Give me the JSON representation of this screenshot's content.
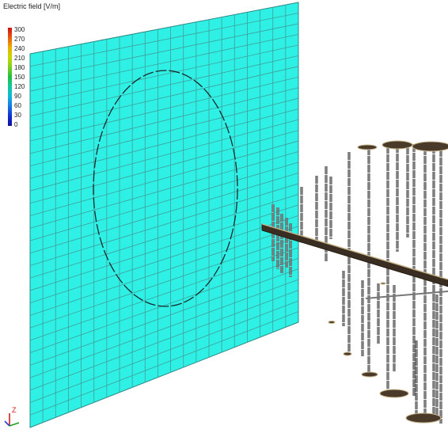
{
  "legend": {
    "title": "Electric field [V/m]",
    "ticks": [
      "300",
      "270",
      "240",
      "210",
      "180",
      "150",
      "120",
      "90",
      "60",
      "30",
      "0"
    ]
  },
  "axes": {
    "z_label": "Z"
  },
  "colors": {
    "field_plane": "#2ff0e4",
    "grid_line": "#3f9f9a",
    "antenna_element": "#555555",
    "ground_disk": "#4a3a2a"
  }
}
